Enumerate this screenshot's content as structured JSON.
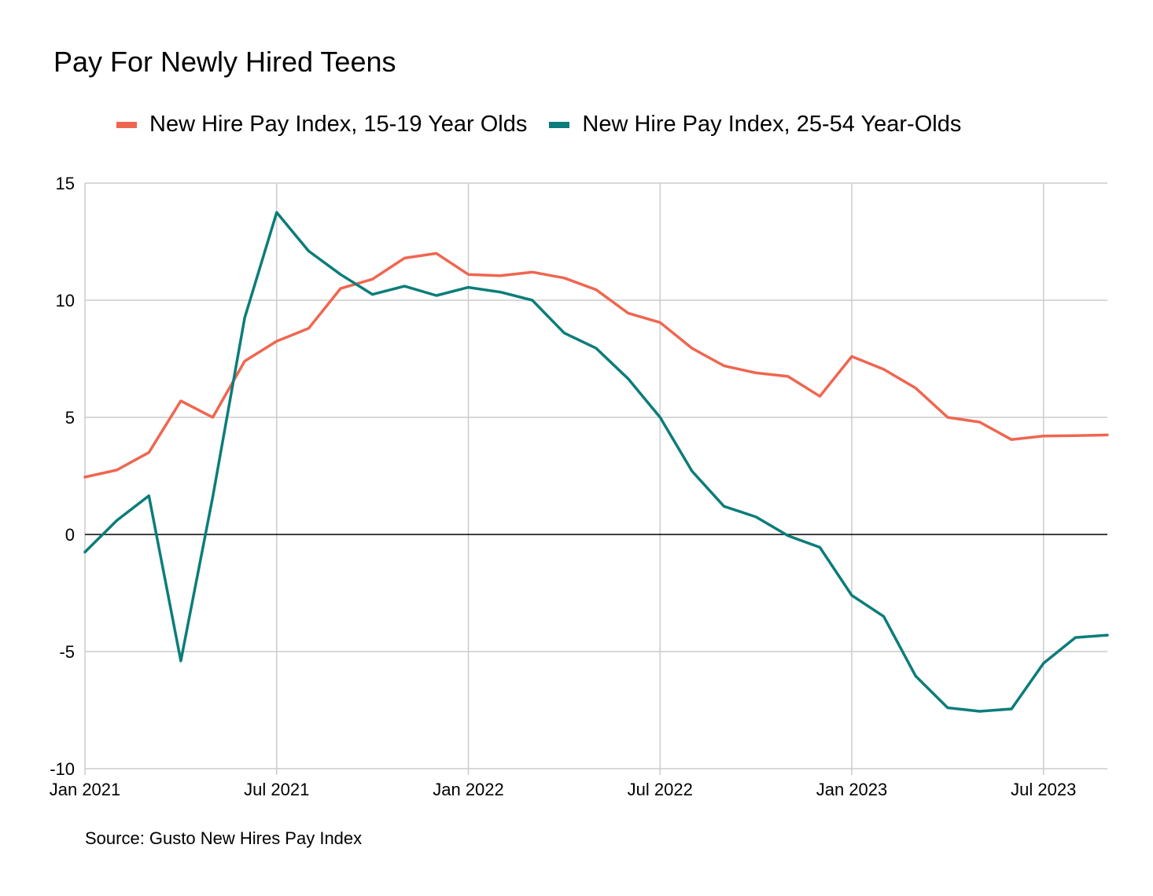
{
  "colors": {
    "teens": "#ef6650",
    "adults": "#0b7d7a",
    "grid": "#cccccc",
    "zero": "#000000"
  },
  "chart_data": {
    "type": "line",
    "title": "Pay For Newly Hired Teens",
    "source": "Source: Gusto New Hires Pay Index",
    "ylim": [
      -10,
      15
    ],
    "yticks": [
      15,
      10,
      5,
      0,
      -5,
      -10
    ],
    "ytick_labels": [
      "15",
      "10",
      "5",
      "0",
      "-5",
      "-10"
    ],
    "xticks": [
      {
        "label": "Jan 2021",
        "index": 0
      },
      {
        "label": "Jul 2021",
        "index": 6
      },
      {
        "label": "Jan 2022",
        "index": 12
      },
      {
        "label": "Jul 2022",
        "index": 18
      },
      {
        "label": "Jan 2023",
        "index": 24
      },
      {
        "label": "Jul 2023",
        "index": 30
      }
    ],
    "x": [
      "2021-01",
      "2021-02",
      "2021-03",
      "2021-04",
      "2021-05",
      "2021-06",
      "2021-07",
      "2021-08",
      "2021-09",
      "2021-10",
      "2021-11",
      "2021-12",
      "2022-01",
      "2022-02",
      "2022-03",
      "2022-04",
      "2022-05",
      "2022-06",
      "2022-07",
      "2022-08",
      "2022-09",
      "2022-10",
      "2022-11",
      "2022-12",
      "2023-01",
      "2023-02",
      "2023-03",
      "2023-04",
      "2023-05",
      "2023-06",
      "2023-07",
      "2023-08",
      "2023-09"
    ],
    "series": [
      {
        "name": "New Hire Pay Index, 15-19 Year Olds",
        "color_key": "teens",
        "values": [
          2.45,
          2.75,
          3.5,
          5.7,
          5.0,
          7.4,
          8.25,
          8.8,
          10.5,
          10.9,
          11.8,
          12.0,
          11.1,
          11.05,
          11.2,
          10.95,
          10.45,
          9.45,
          9.05,
          7.95,
          7.2,
          6.9,
          6.75,
          5.9,
          7.6,
          7.05,
          6.25,
          5.0,
          4.8,
          4.05,
          4.2,
          4.22,
          4.25
        ]
      },
      {
        "name": "New Hire Pay Index, 25-54 Year-Olds",
        "color_key": "adults",
        "values": [
          -0.75,
          0.6,
          1.65,
          -5.4,
          1.6,
          9.25,
          13.75,
          12.1,
          11.1,
          10.25,
          10.6,
          10.2,
          10.55,
          10.35,
          10.0,
          8.6,
          7.95,
          6.65,
          5.0,
          2.7,
          1.2,
          0.75,
          -0.05,
          -0.55,
          -2.6,
          -3.5,
          -6.05,
          -7.4,
          -7.55,
          -7.45,
          -5.5,
          -4.4,
          -4.3
        ]
      }
    ]
  }
}
